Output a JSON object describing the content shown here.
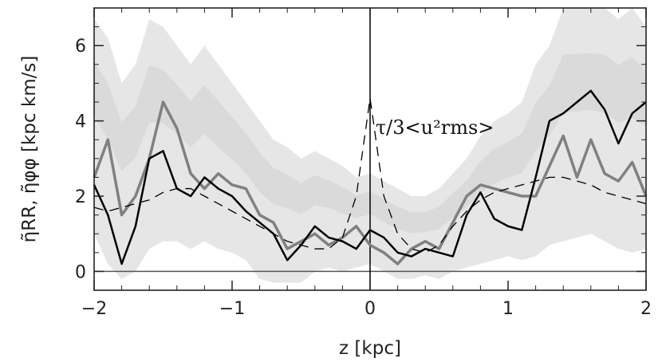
{
  "chart_data": {
    "type": "line",
    "xlabel": "z [kpc]",
    "ylabel": "η̃RR, η̃φφ [kpc km/s]",
    "xlim": [
      -2,
      2
    ],
    "ylim": [
      -0.5,
      7
    ],
    "xticks": [
      -2,
      -1,
      0,
      1,
      2
    ],
    "xtick_labels": [
      "−2",
      "−1",
      "0",
      "1",
      "2"
    ],
    "yticks": [
      0,
      2,
      4,
      6
    ],
    "ytick_labels": [
      "0",
      "2",
      "4",
      "6"
    ],
    "annotation": "τ/3<u²rms>",
    "reference_lines": {
      "hline_y": 0,
      "vline_x": 0
    },
    "colors": {
      "rr": "#000000",
      "pp": "#808080",
      "band": "#e6e6e6",
      "band_dark": "#d0d0d0",
      "dashed": "#000000"
    },
    "x": [
      -2.0,
      -1.9,
      -1.8,
      -1.7,
      -1.6,
      -1.5,
      -1.4,
      -1.3,
      -1.2,
      -1.1,
      -1.0,
      -0.9,
      -0.8,
      -0.7,
      -0.6,
      -0.5,
      -0.4,
      -0.3,
      -0.2,
      -0.1,
      0.0,
      0.1,
      0.2,
      0.3,
      0.4,
      0.5,
      0.6,
      0.7,
      0.8,
      0.9,
      1.0,
      1.1,
      1.2,
      1.3,
      1.4,
      1.5,
      1.6,
      1.7,
      1.8,
      1.9,
      2.0
    ],
    "series": [
      {
        "values": [
          2.3,
          1.5,
          0.2,
          1.2,
          3.0,
          3.2,
          2.2,
          2.0,
          2.5,
          2.2,
          2.0,
          1.6,
          1.3,
          1.0,
          0.3,
          0.7,
          1.2,
          0.9,
          0.8,
          0.6,
          1.1,
          0.9,
          0.5,
          0.4,
          0.6,
          0.5,
          0.4,
          1.5,
          2.1,
          1.4,
          1.2,
          1.1,
          2.5,
          4.0,
          4.2,
          4.5,
          4.8,
          4.3,
          3.4,
          4.2,
          4.5
        ]
      },
      {
        "values": [
          2.5,
          3.5,
          1.5,
          2.0,
          3.0,
          4.5,
          3.8,
          2.6,
          2.2,
          2.6,
          2.3,
          2.2,
          1.5,
          1.3,
          0.6,
          0.8,
          1.0,
          0.7,
          0.9,
          1.2,
          0.7,
          0.5,
          0.2,
          0.6,
          0.8,
          0.6,
          1.3,
          2.0,
          2.3,
          2.2,
          2.1,
          2.0,
          2.0,
          2.8,
          3.6,
          2.5,
          3.5,
          2.6,
          2.4,
          2.9,
          2.0
        ]
      },
      {
        "values": [
          1.7,
          1.6,
          1.7,
          1.8,
          1.9,
          2.1,
          2.2,
          2.2,
          2.0,
          1.8,
          1.6,
          1.4,
          1.2,
          1.0,
          0.8,
          0.7,
          0.6,
          0.6,
          0.9,
          2.0,
          4.6,
          2.0,
          1.0,
          0.6,
          0.5,
          0.7,
          1.2,
          1.6,
          1.9,
          2.1,
          2.2,
          2.3,
          2.4,
          2.5,
          2.5,
          2.4,
          2.3,
          2.1,
          2.0,
          1.9,
          1.8
        ]
      }
    ],
    "band_upper": [
      6.7,
      6.2,
      5.0,
      5.5,
      6.7,
      6.5,
      6.0,
      5.5,
      6.0,
      5.5,
      5.0,
      4.5,
      4.0,
      3.5,
      3.3,
      3.0,
      3.2,
      3.0,
      2.8,
      2.5,
      2.6,
      2.4,
      2.2,
      2.0,
      2.0,
      2.2,
      2.6,
      3.0,
      3.6,
      4.0,
      4.2,
      4.5,
      5.5,
      6.0,
      7.0,
      7.0,
      7.0,
      7.0,
      6.7,
      7.0,
      6.5
    ],
    "band_lower": [
      1.0,
      0.2,
      -0.2,
      0.0,
      0.6,
      0.8,
      0.8,
      0.6,
      0.8,
      0.6,
      0.5,
      0.3,
      -0.2,
      -0.3,
      -0.3,
      -0.3,
      0.0,
      0.1,
      0.0,
      0.1,
      0.2,
      0.0,
      -0.2,
      -0.2,
      -0.1,
      -0.2,
      0.0,
      0.1,
      0.2,
      0.3,
      0.4,
      0.3,
      0.4,
      0.7,
      0.8,
      0.9,
      1.0,
      0.8,
      0.6,
      0.5,
      0.6
    ]
  }
}
